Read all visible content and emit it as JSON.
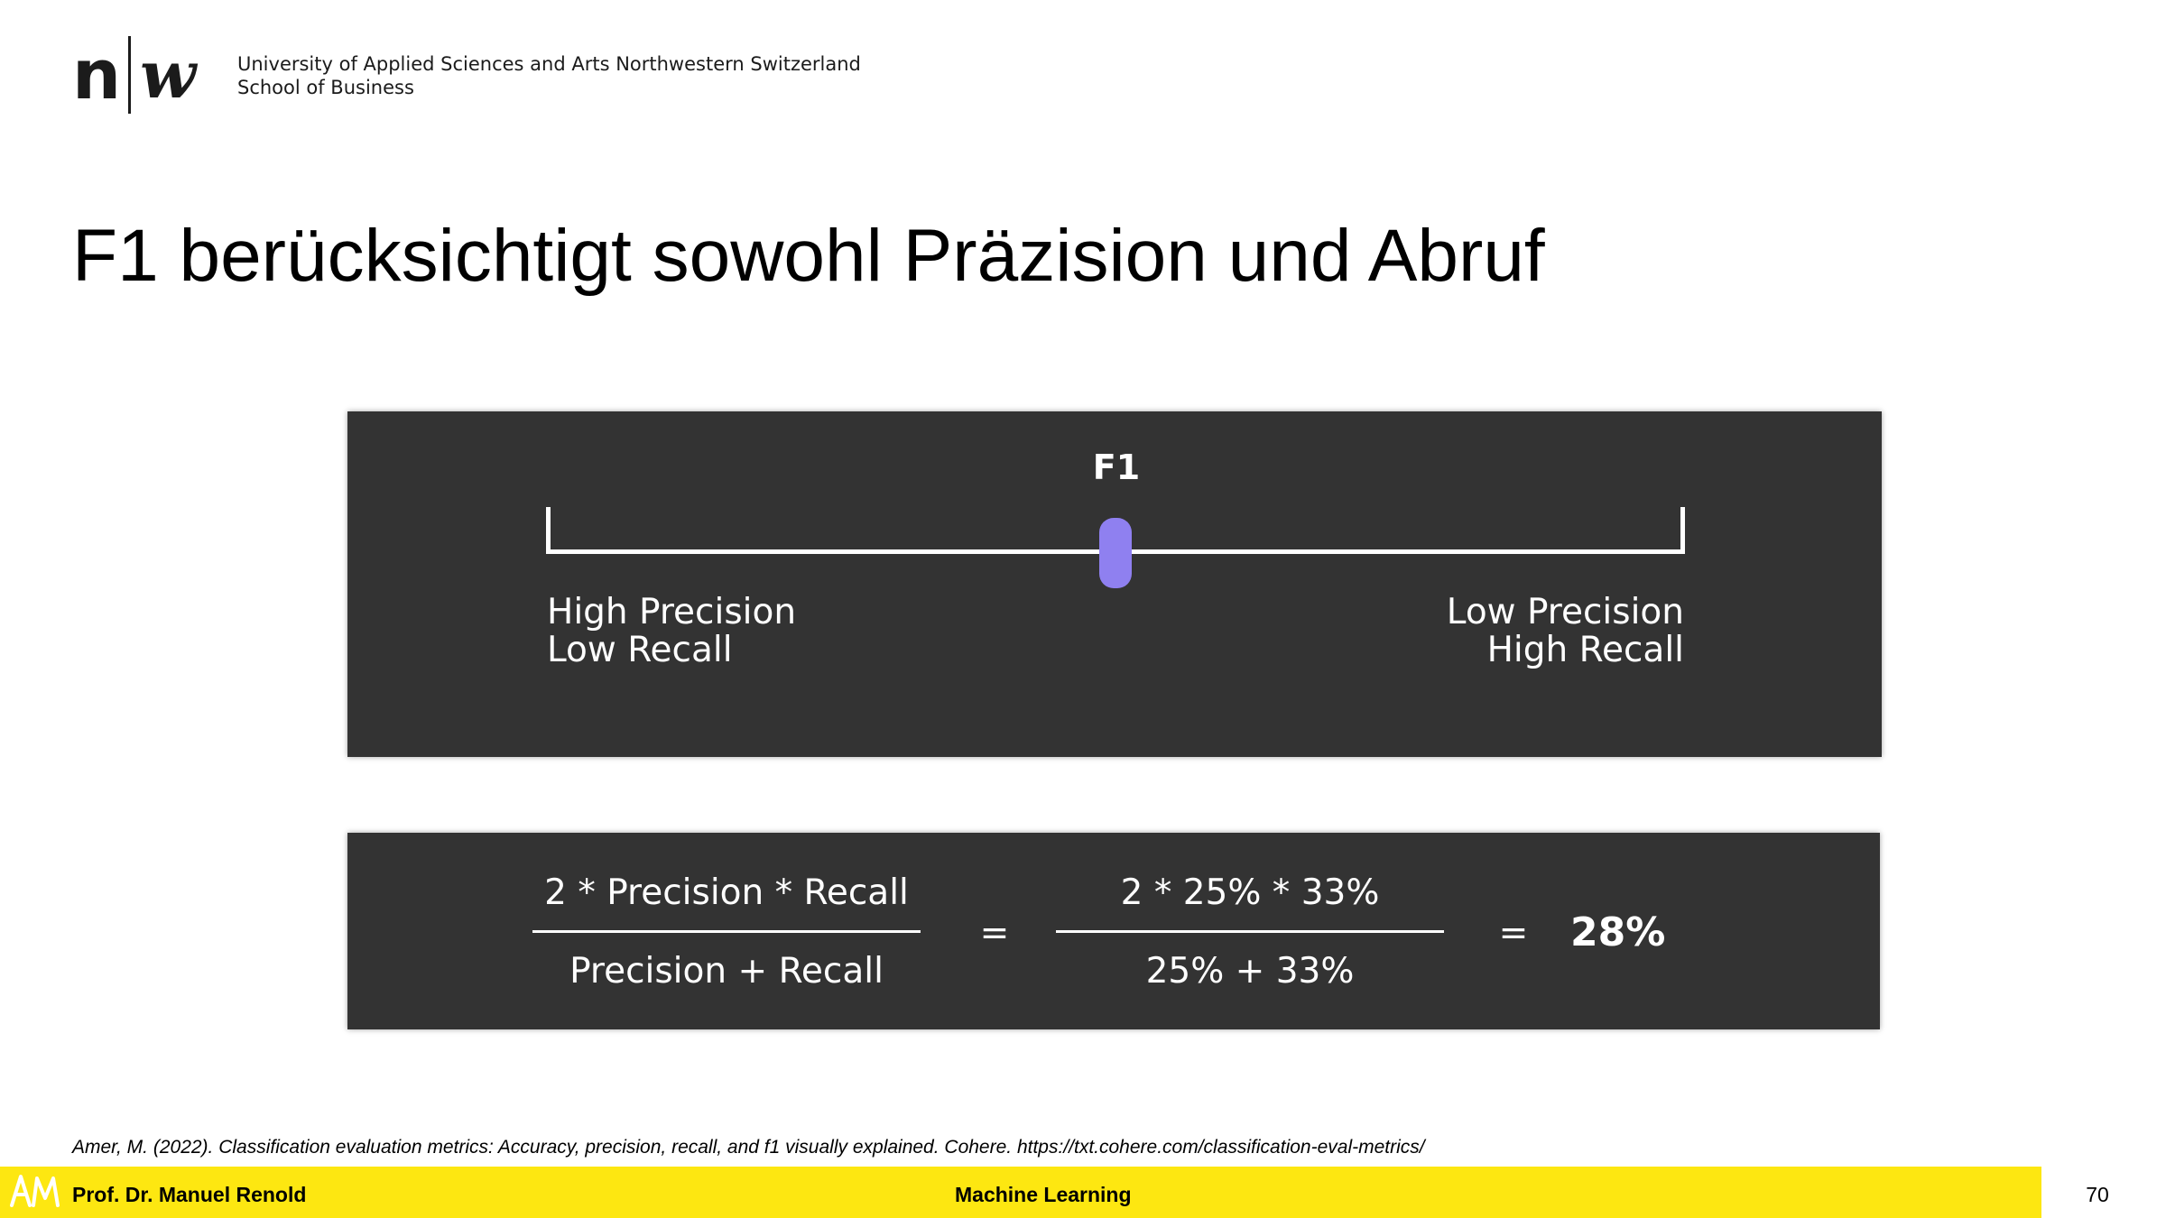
{
  "header": {
    "logo_left": "n",
    "logo_right": "w",
    "institution_line1": "University of Applied Sciences and Arts Northwestern Switzerland",
    "institution_line2": "School of Business"
  },
  "slide": {
    "title": "F1 berücksichtigt sowohl Präzision und Abruf"
  },
  "scale_panel": {
    "label": "F1",
    "left_label_line1": "High Precision",
    "left_label_line2": "Low Recall",
    "right_label_line1": "Low Precision",
    "right_label_line2": "High Recall",
    "marker_position_fraction": 0.5,
    "marker_color": "#8f80f0",
    "panel_color": "#333333"
  },
  "formula_panel": {
    "numerator_general": "2 * Precision * Recall",
    "denominator_general": "Precision + Recall",
    "equals_1": "=",
    "numerator_values": "2 * 25% * 33%",
    "denominator_values": "25% + 33%",
    "equals_2": "=",
    "result": "28%"
  },
  "citation": "Amer, M. (2022). Classification evaluation metrics: Accuracy, precision, recall, and f1 visually explained. Cohere. https://txt.cohere.com/classification-eval-metrics/",
  "footer": {
    "author": "Prof. Dr. Manuel Renold",
    "course": "Machine Learning",
    "page_number": "70",
    "bar_color": "#fde711",
    "author_logo_icon": "am-monogram-icon"
  }
}
